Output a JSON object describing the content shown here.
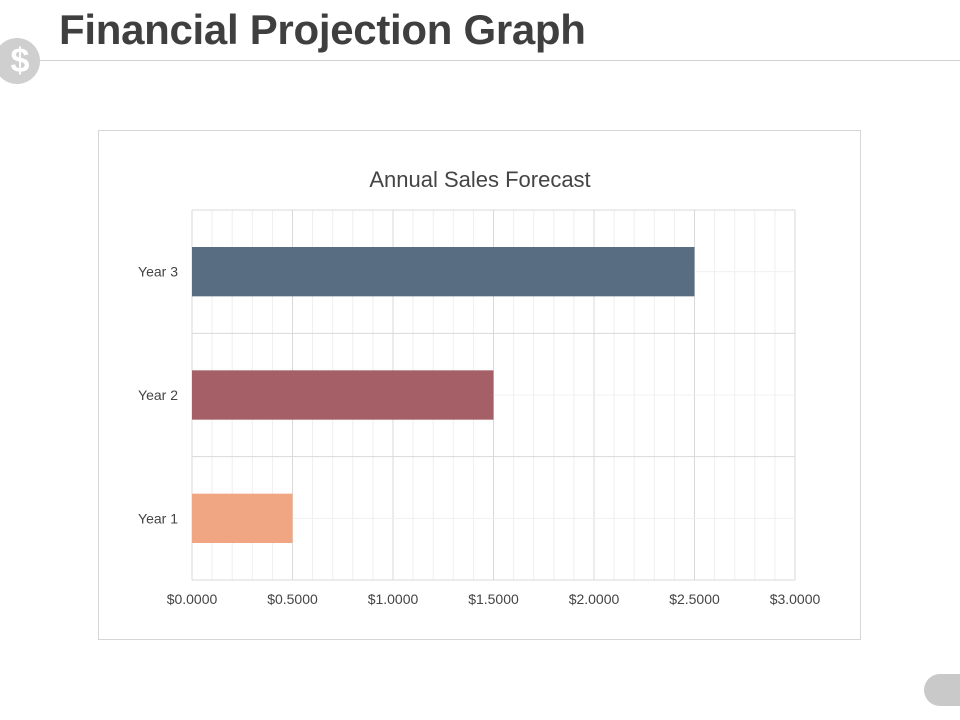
{
  "slide": {
    "title": "Financial Projection Graph",
    "badge_icon": "dollar-icon",
    "badge_glyph": "$",
    "badge_color": "#cfcfcf"
  },
  "chart_data": {
    "type": "bar",
    "orientation": "horizontal",
    "title": "Annual Sales Forecast",
    "categories": [
      "Year 1",
      "Year 2",
      "Year 3"
    ],
    "values": [
      0.5,
      1.5,
      2.5
    ],
    "colors": [
      "#f0a683",
      "#a45f67",
      "#596d82"
    ],
    "xlim": [
      0,
      3
    ],
    "xticks": [
      0,
      0.5,
      1,
      1.5,
      2,
      2.5,
      3
    ],
    "xtick_labels": [
      "$0.0000",
      "$0.5000",
      "$1.0000",
      "$1.5000",
      "$2.0000",
      "$2.5000",
      "$3.0000"
    ],
    "xlabel": "",
    "ylabel": "",
    "grid": true,
    "legend": "none"
  }
}
